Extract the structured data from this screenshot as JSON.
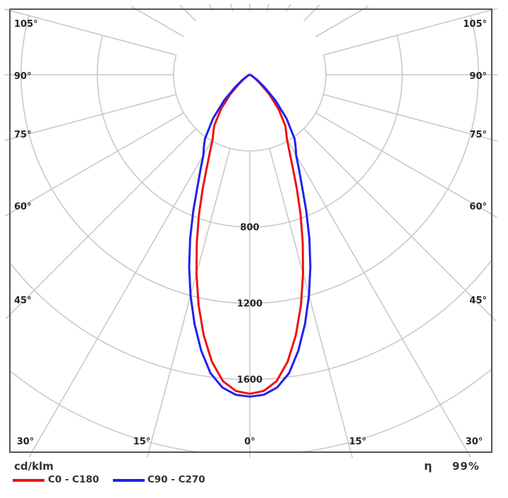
{
  "footer": {
    "unit": "cd/klm",
    "efficiency_symbol": "η",
    "efficiency_value": "99%"
  },
  "legend": [
    {
      "label": "C0 - C180",
      "color": "#ee1111"
    },
    {
      "label": "C90 - C270",
      "color": "#2121ee"
    }
  ],
  "chart_data": {
    "type": "line",
    "subtype": "polar-luminous-intensity",
    "unit": "cd/klm",
    "efficiency_percent": 99,
    "angle_ticks_deg": [
      0,
      15,
      30,
      45,
      60,
      75,
      90,
      105
    ],
    "radial_gridlines_cd_klm": [
      400,
      800,
      1200,
      1600,
      2000
    ],
    "radial_axis_labels": [
      800,
      1200,
      1600
    ],
    "grid_color": "#c9c9c9",
    "border_color": "#555555",
    "text_color": "#262626",
    "series": [
      {
        "name": "C0 - C180",
        "color": "#ee1111",
        "gamma_deg": [
          0,
          2.5,
          5,
          7.5,
          10,
          12.5,
          15,
          17.5,
          20,
          22.5,
          25,
          27.5,
          30,
          32.5,
          35,
          40,
          45,
          50,
          55,
          60,
          70,
          85,
          105
        ],
        "intensity_cd_klm": [
          1675,
          1662,
          1615,
          1520,
          1390,
          1240,
          1080,
          925,
          780,
          645,
          530,
          450,
          390,
          356,
          325,
          235,
          145,
          72,
          33,
          15,
          5,
          2,
          0
        ]
      },
      {
        "name": "C90 - C270",
        "color": "#2121ee",
        "gamma_deg": [
          0,
          2.5,
          5,
          7.5,
          10,
          12.5,
          15,
          17.5,
          20,
          22.5,
          25,
          27.5,
          30,
          32.5,
          35,
          40,
          45,
          50,
          55,
          60,
          70,
          85,
          105
        ],
        "intensity_cd_klm": [
          1690,
          1682,
          1648,
          1580,
          1470,
          1340,
          1200,
          1058,
          915,
          775,
          650,
          560,
          487,
          448,
          410,
          300,
          190,
          100,
          48,
          22,
          8,
          3,
          0
        ]
      }
    ]
  }
}
